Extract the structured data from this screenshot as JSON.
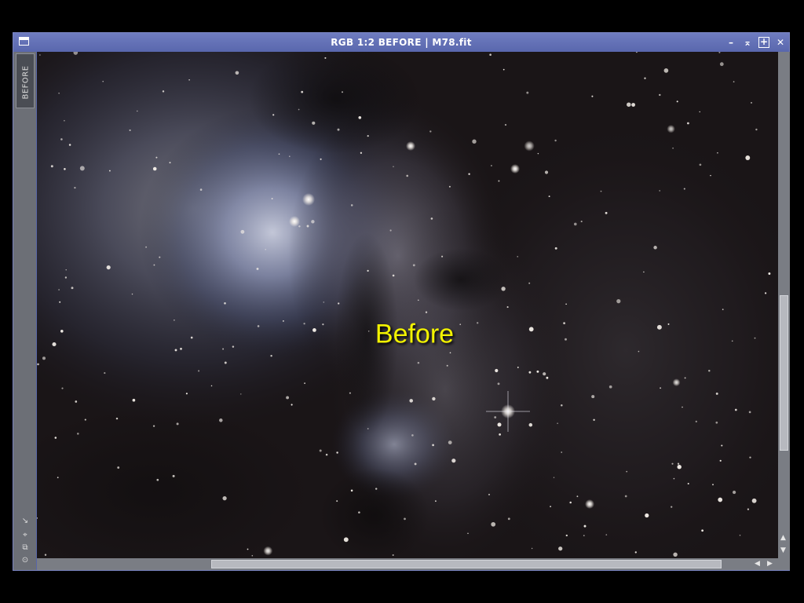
{
  "window": {
    "title": "RGB 1:2 BEFORE | M78.fit",
    "controls": {
      "minimize": "–",
      "shade": "⌅",
      "maximize": "+",
      "close": "✕"
    },
    "side_tab_label": "BEFORE"
  },
  "image": {
    "overlay_label": "Before"
  },
  "scrollbars": {
    "horizontal_position": 0.24,
    "vertical_position": 0.48
  },
  "colors": {
    "titlebar": "#5967ad",
    "label": "#f2f200"
  }
}
